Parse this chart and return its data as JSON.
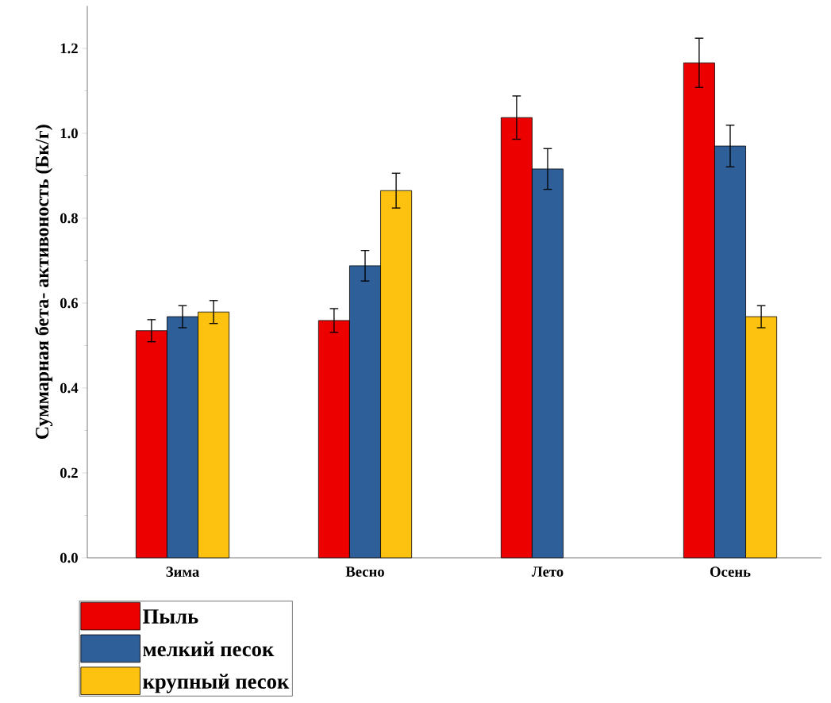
{
  "chart_data": {
    "type": "bar",
    "ylabel": "Суммарная бета- активоность (Бк/г)",
    "categories": [
      "Зима",
      "Весно",
      "Лето",
      "Осень"
    ],
    "series": [
      {
        "name": "Пыль",
        "color": "#ec0000",
        "values": [
          0.535,
          0.559,
          1.037,
          1.166
        ],
        "errors": [
          0.026,
          0.028,
          0.051,
          0.058
        ]
      },
      {
        "name": "мелкий песок",
        "color": "#2f5f98",
        "values": [
          0.568,
          0.688,
          0.916,
          0.97
        ],
        "errors": [
          0.026,
          0.036,
          0.048,
          0.049
        ]
      },
      {
        "name": "крупный песок",
        "color": "#fdc20f",
        "values": [
          0.579,
          0.865,
          null,
          0.568
        ],
        "errors": [
          0.027,
          0.041,
          null,
          0.026
        ]
      }
    ],
    "ylim": [
      0,
      1.3
    ],
    "yticks": [
      {
        "value": 0,
        "label": "0.0"
      },
      {
        "value": 0.2,
        "label": "0.2"
      },
      {
        "value": 0.4,
        "label": "0.4"
      },
      {
        "value": 0.6,
        "label": "0.6"
      },
      {
        "value": 0.8,
        "label": "0.8"
      },
      {
        "value": 1.0,
        "label": "1.0"
      },
      {
        "value": 1.2,
        "label": "1.2"
      }
    ],
    "grid": false,
    "legend": "bottom left"
  }
}
